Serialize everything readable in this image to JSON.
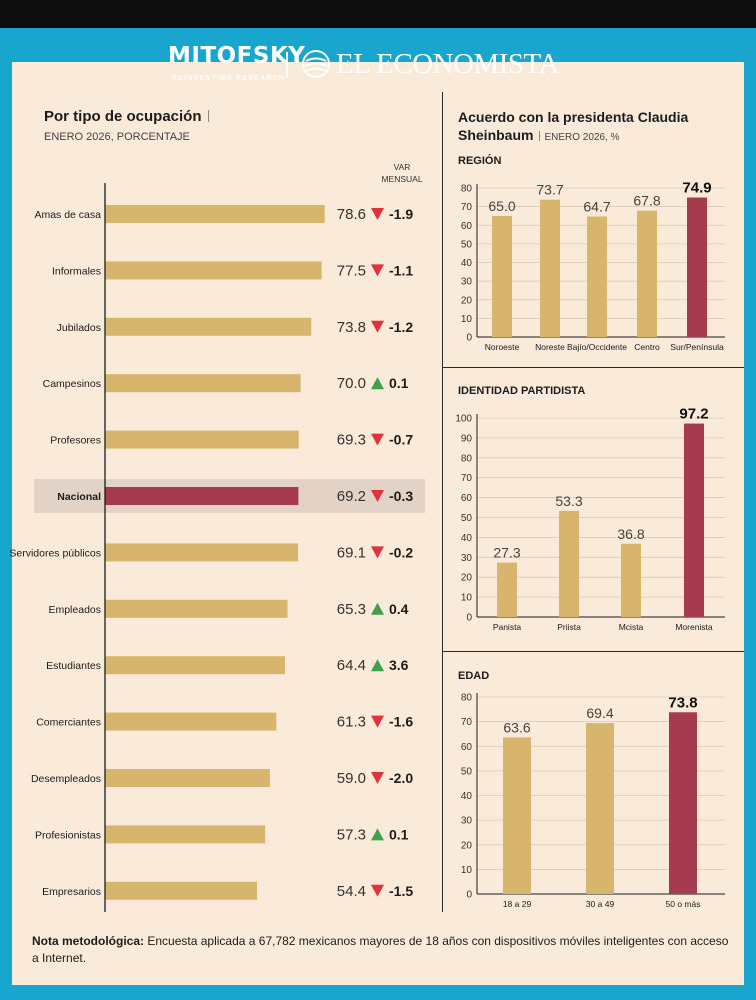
{
  "header": {
    "logo1": "MITOFSKY",
    "logo1_sub": "REINVENTING RESEARCH",
    "logo2": "EL ECONOMISTA"
  },
  "left": {
    "title": "Por tipo de ocupación",
    "subtitle": "ENERO 2026, PORCENTAJE",
    "var_label_1": "VAR",
    "var_label_2": "MENSUAL"
  },
  "right": {
    "title_line1": "Acuerdo con la presidenta Claudia",
    "title_line2": "Sheinbaum",
    "subtitle": "ENERO 2026, %"
  },
  "colors": {
    "bar": "#d8b56c",
    "highlight": "#a63a4e",
    "up": "#3ea04a",
    "down": "#e0333c",
    "highlight_band": "#e3d3c6",
    "frame": "#18a6cf"
  },
  "chart_data": [
    {
      "type": "bar",
      "orientation": "horizontal",
      "categories": [
        "Amas de casa",
        "Informales",
        "Jubilados",
        "Campesinos",
        "Profesores",
        "Nacional",
        "Servidores públicos",
        "Empleados",
        "Estudiantes",
        "Comerciantes",
        "Desempleados",
        "Profesionistas",
        "Empresarios"
      ],
      "values": [
        78.6,
        77.5,
        73.8,
        70.0,
        69.3,
        69.2,
        69.1,
        65.3,
        64.4,
        61.3,
        59.0,
        57.3,
        54.4
      ],
      "value_labels": [
        "78.6",
        "77.5",
        "73.8",
        "70.0",
        "69.3",
        "69.2",
        "69.1",
        "65.3",
        "64.4",
        "61.3",
        "59.0",
        "57.3",
        "54.4"
      ],
      "var_mensual": [
        "-1.9",
        "-1.1",
        "-1.2",
        "0.1",
        "-0.7",
        "-0.3",
        "-0.2",
        "0.4",
        "3.6",
        "-1.6",
        "-2.0",
        "0.1",
        "-1.5"
      ],
      "highlight": "Nacional"
    },
    {
      "type": "bar",
      "title": "REGIÓN",
      "categories": [
        "Noroeste",
        "Noreste",
        "Bajío/Occidente",
        "Centro",
        "Sur/Península"
      ],
      "values": [
        65.0,
        73.7,
        64.7,
        67.8,
        74.9
      ],
      "value_labels": [
        "65.0",
        "73.7",
        "64.7",
        "67.8",
        "74.9"
      ],
      "ylim": [
        0,
        80
      ],
      "yticks": [
        "0",
        "10",
        "20",
        "30",
        "40",
        "50",
        "60",
        "70",
        "80"
      ],
      "highlight": "Sur/Península"
    },
    {
      "type": "bar",
      "title": "IDENTIDAD PARTIDISTA",
      "categories": [
        "Panista",
        "Priista",
        "Mcista",
        "Morenista"
      ],
      "values": [
        27.3,
        53.3,
        36.8,
        97.2
      ],
      "value_labels": [
        "27.3",
        "53.3",
        "36.8",
        "97.2"
      ],
      "ylim": [
        0,
        100
      ],
      "yticks": [
        "0",
        "10",
        "20",
        "30",
        "40",
        "50",
        "60",
        "70",
        "80",
        "90",
        "100"
      ],
      "highlight": "Morenista"
    },
    {
      "type": "bar",
      "title": "EDAD",
      "categories": [
        "18 a 29",
        "30 a 49",
        "50 o más"
      ],
      "values": [
        63.6,
        69.4,
        73.8
      ],
      "value_labels": [
        "63.6",
        "69.4",
        "73.8"
      ],
      "ylim": [
        0,
        80
      ],
      "yticks": [
        "0",
        "10",
        "20",
        "30",
        "40",
        "50",
        "60",
        "70",
        "80"
      ],
      "highlight": "50 o más"
    }
  ],
  "note": {
    "label": "Nota metodológica:",
    "text": "Encuesta aplicada a 67,782 mexicanos mayores de 18 años con dispositivos móviles inteligentes con acceso a Internet."
  }
}
